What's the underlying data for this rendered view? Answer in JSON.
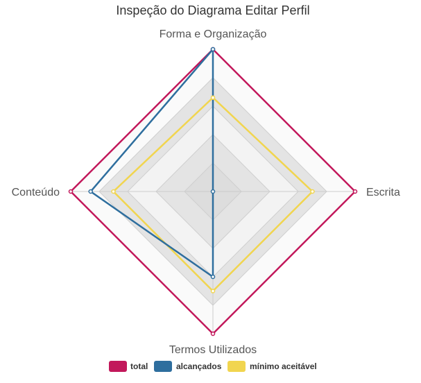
{
  "chart_data": {
    "type": "radar",
    "title": "Inspeção do Diagrama Editar Perfil",
    "axes": [
      "Forma e Organização",
      "Escrita",
      "Termos Utilizados",
      "Conteúdo"
    ],
    "range": [
      0,
      5
    ],
    "grid": true,
    "legend_position": "bottom",
    "series": [
      {
        "name": "total",
        "color": "#c2185b",
        "values": [
          5,
          5,
          5,
          5
        ]
      },
      {
        "name": "alcançados",
        "color": "#2e6e9e",
        "values": [
          5,
          0,
          3,
          4.3
        ]
      },
      {
        "name": "mínimo aceitável",
        "color": "#f1d54f",
        "values": [
          3.3,
          3.5,
          3.5,
          3.5
        ]
      }
    ]
  }
}
